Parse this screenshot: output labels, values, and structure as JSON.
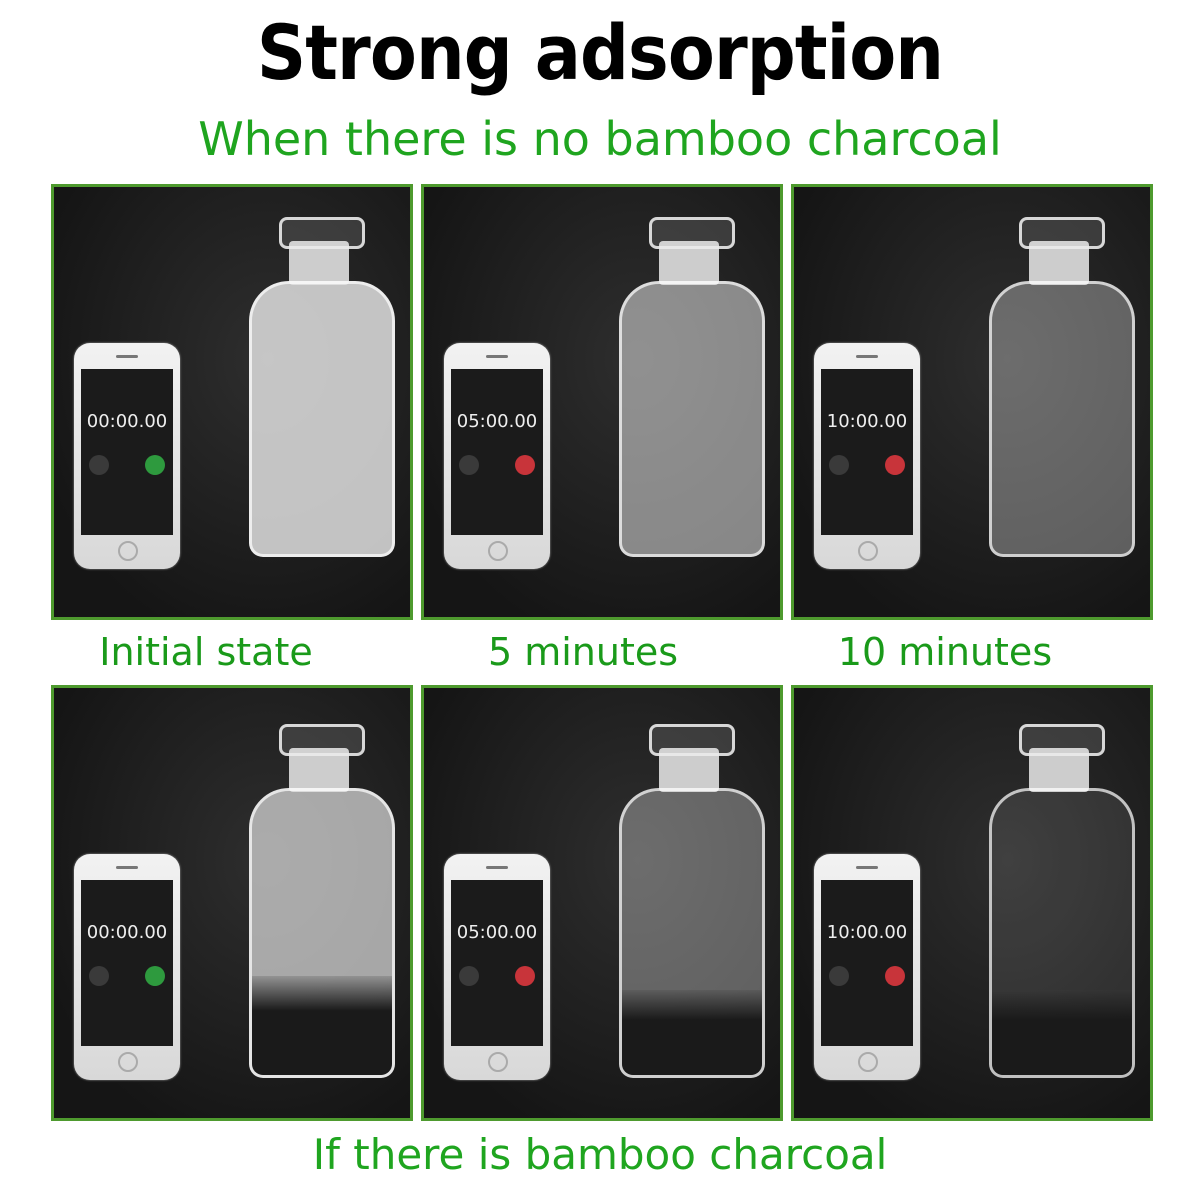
{
  "title": "Strong adsorption",
  "top_caption": "When there is no bamboo charcoal",
  "bottom_caption": "If there is bamboo charcoal",
  "colors": {
    "caption_green": "#1fa51f",
    "panel_border": "#4e9a2e",
    "start_button": "#2e9a3e",
    "stop_button": "#c8343a"
  },
  "stage_labels": [
    "Initial state",
    "5 minutes",
    "10 minutes"
  ],
  "rows": [
    {
      "panels": [
        {
          "timer": "00:00.00",
          "button": "start",
          "haze": 0.85,
          "charcoal": 0
        },
        {
          "timer": "05:00.00",
          "button": "stop",
          "haze": 0.55,
          "charcoal": 0
        },
        {
          "timer": "10:00.00",
          "button": "stop",
          "haze": 0.35,
          "charcoal": 0
        }
      ]
    },
    {
      "panels": [
        {
          "timer": "00:00.00",
          "button": "start",
          "haze": 0.7,
          "charcoal": 0.35
        },
        {
          "timer": "05:00.00",
          "button": "stop",
          "haze": 0.35,
          "charcoal": 0.3
        },
        {
          "timer": "10:00.00",
          "button": "stop",
          "haze": 0.1,
          "charcoal": 0.3
        }
      ]
    }
  ]
}
